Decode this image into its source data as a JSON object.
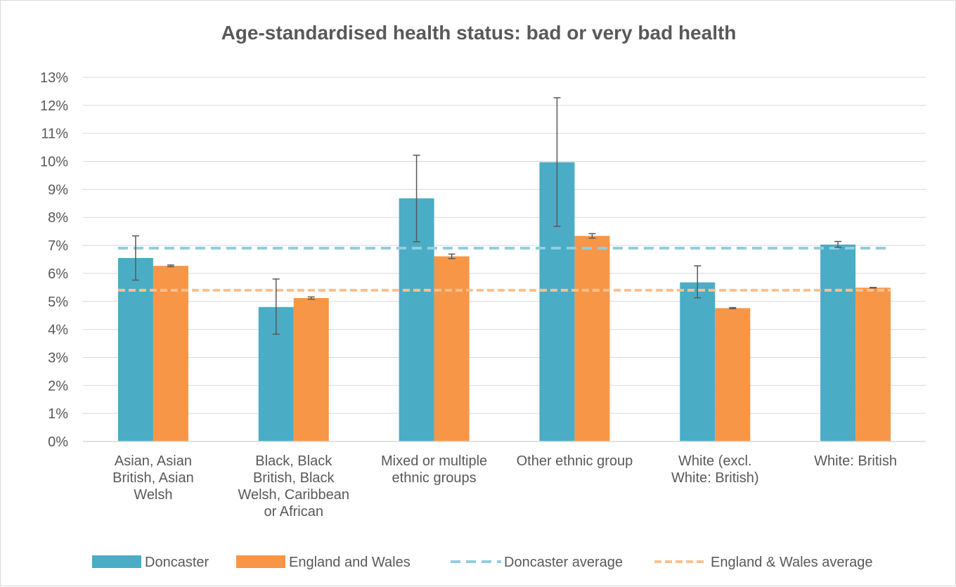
{
  "chart_data": {
    "type": "bar",
    "title": "Age-standardised health status: bad or very bad health",
    "categories": [
      [
        "Asian, Asian",
        "British, Asian",
        "Welsh"
      ],
      [
        "Black, Black",
        "British, Black",
        "Welsh, Caribbean",
        "or African"
      ],
      [
        "Mixed or multiple",
        "ethnic groups"
      ],
      [
        "Other ethnic group"
      ],
      [
        "White (excl.",
        "White: British)"
      ],
      [
        "White: British"
      ]
    ],
    "series": [
      {
        "name": "Doncaster",
        "color": "#4BACC6",
        "values": [
          6.55,
          4.8,
          8.68,
          9.97,
          5.68,
          7.03
        ],
        "error_low": [
          5.76,
          3.83,
          7.13,
          7.68,
          5.13,
          6.93
        ],
        "error_high": [
          7.34,
          5.8,
          10.22,
          12.27,
          6.27,
          7.14
        ]
      },
      {
        "name": "England and Wales",
        "color": "#F79646",
        "values": [
          6.27,
          5.12,
          6.61,
          7.34,
          4.76,
          5.49
        ],
        "error_low": [
          6.24,
          5.08,
          6.53,
          7.26,
          4.74,
          5.48
        ],
        "error_high": [
          6.3,
          5.16,
          6.69,
          7.42,
          4.78,
          5.5
        ]
      }
    ],
    "reference_lines": [
      {
        "name": "Doncaster average",
        "value": 6.9,
        "color": "#92CDDC",
        "style": "dashed"
      },
      {
        "name": "England & Wales average",
        "value": 5.4,
        "color": "#FAC090",
        "style": "dashed"
      }
    ],
    "ylim": [
      0,
      13
    ],
    "yticks": [
      "0%",
      "1%",
      "2%",
      "3%",
      "4%",
      "5%",
      "6%",
      "7%",
      "8%",
      "9%",
      "10%",
      "11%",
      "12%",
      "13%"
    ],
    "grid": true,
    "legend": "bottom"
  }
}
